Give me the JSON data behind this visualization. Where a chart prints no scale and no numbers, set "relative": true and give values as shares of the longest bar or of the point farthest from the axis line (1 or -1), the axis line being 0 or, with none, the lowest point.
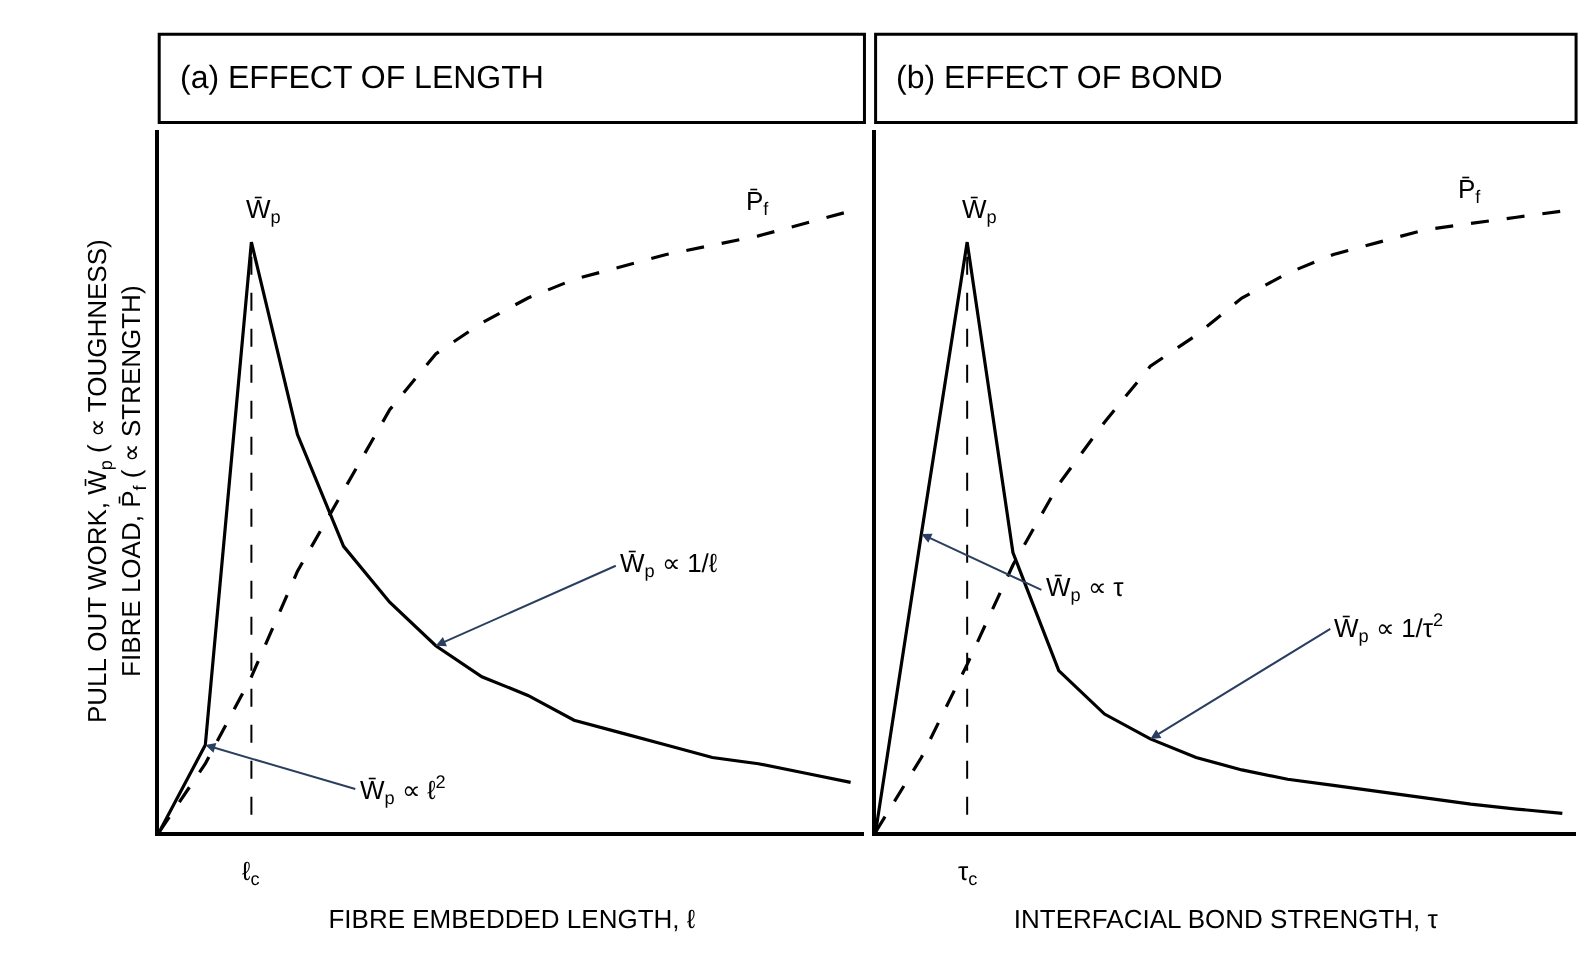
{
  "chart_data": [
    {
      "type": "line",
      "relative": true,
      "title": "(a) EFFECT OF LENGTH",
      "xlabel": "FIBRE EMBEDDED LENGTH, ℓ",
      "ylabel": "PULL OUT WORK, W̄$_{p}$ ( ∝ TOUGHNESS)\nFIBRE LOAD, P̄$_{f}$ ( ∝ STRENGTH)",
      "categories": [
        null,
        null,
        null,
        null,
        null,
        null,
        null,
        null,
        null,
        null,
        null,
        null,
        null,
        null,
        null,
        null
      ],
      "series": [
        {
          "name": "W̄$_{p}$",
          "color": "#000000",
          "line_style": "solid",
          "values": [
            0,
            0.14,
            0.95,
            0.64,
            0.46,
            0.37,
            0.3,
            0.25,
            0.22,
            0.18,
            0.16,
            0.14,
            0.12,
            0.11,
            0.095,
            0.08
          ]
        },
        {
          "name": "P̄$_{f}$",
          "color": "#000000",
          "line_style": "dashed",
          "values": [
            0,
            0.11,
            0.25,
            0.42,
            0.55,
            0.68,
            0.77,
            0.82,
            0.86,
            0.89,
            0.91,
            0.93,
            0.945,
            0.96,
            0.98,
            1.0
          ]
        }
      ],
      "ref_lines": [
        {
          "axis": "x",
          "value": "ℓ$_{c}$",
          "line_style": "dashed",
          "color": "#000000"
        }
      ],
      "annotations": [
        "W̄$_{p}$ ∝ 1/ℓ",
        "W̄$_{p}$ ∝ ℓ$^{2}$"
      ],
      "legend": false
    },
    {
      "type": "line",
      "relative": true,
      "title": "(b) EFFECT OF BOND",
      "xlabel": "INTERFACIAL BOND STRENGTH, τ",
      "categories": [
        null,
        null,
        null,
        null,
        null,
        null,
        null,
        null,
        null,
        null,
        null,
        null,
        null,
        null,
        null,
        null
      ],
      "series": [
        {
          "name": "W̄$_{p}$",
          "color": "#000000",
          "line_style": "solid",
          "values": [
            0,
            0.48,
            0.95,
            0.45,
            0.26,
            0.19,
            0.15,
            0.12,
            0.1,
            0.085,
            0.075,
            0.065,
            0.055,
            0.045,
            0.037,
            0.03
          ]
        },
        {
          "name": "P̄$_{f}$",
          "color": "#000000",
          "line_style": "dashed",
          "values": [
            0,
            0.12,
            0.27,
            0.43,
            0.56,
            0.66,
            0.75,
            0.8,
            0.86,
            0.9,
            0.93,
            0.95,
            0.97,
            0.98,
            0.99,
            1.0
          ]
        }
      ],
      "ref_lines": [
        {
          "axis": "x",
          "value": "τ$_{c}$",
          "line_style": "dashed",
          "color": "#000000"
        }
      ],
      "annotations": [
        "W̄$_{p}$ ∝ 1/τ$^{2}$",
        "W̄$_{p}$ ∝ τ"
      ],
      "legend": false
    }
  ]
}
